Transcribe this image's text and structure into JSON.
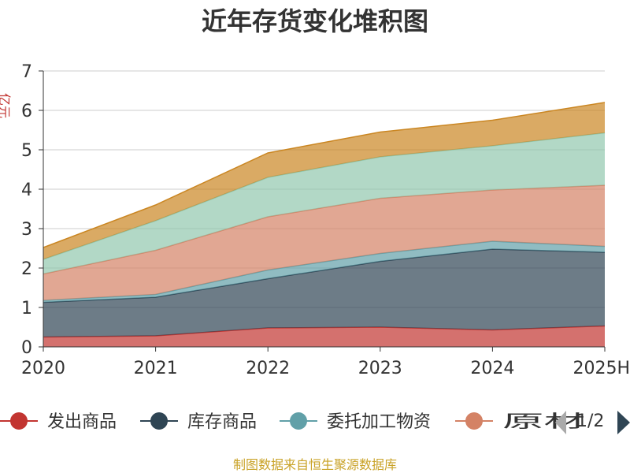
{
  "chart_data": {
    "type": "area",
    "stacked": true,
    "title": "近年存货变化堆积图",
    "ylabel": "亿元",
    "categories": [
      "2020",
      "2021",
      "2022",
      "2023",
      "2024",
      "2025H"
    ],
    "ylim": [
      0,
      7
    ],
    "yticks": [
      0,
      1,
      2,
      3,
      4,
      5,
      6,
      7
    ],
    "grid": true,
    "series": [
      {
        "name": "发出商品",
        "color": "#c23531",
        "values": [
          0.25,
          0.28,
          0.48,
          0.5,
          0.43,
          0.53
        ]
      },
      {
        "name": "库存商品",
        "color": "#2f4554",
        "values": [
          0.88,
          0.98,
          1.25,
          1.67,
          2.05,
          1.87
        ]
      },
      {
        "name": "委托加工物资",
        "color": "#61a0a8",
        "values": [
          0.05,
          0.07,
          0.22,
          0.2,
          0.2,
          0.15
        ]
      },
      {
        "name": "原材料",
        "color": "#d48265",
        "values": [
          0.67,
          1.12,
          1.35,
          1.4,
          1.3,
          1.55
        ]
      },
      {
        "name": "",
        "color": "#91c7ae",
        "values": [
          0.37,
          0.75,
          1.0,
          1.05,
          1.12,
          1.33
        ]
      },
      {
        "name": "",
        "color": "#ca8622",
        "values": [
          0.3,
          0.4,
          0.62,
          0.63,
          0.65,
          0.77
        ]
      }
    ],
    "legend": {
      "position": "bottom",
      "visible_labels": [
        "发出商品",
        "库存商品",
        "委托加工物资",
        "原材"
      ],
      "page_indicator": "1/2"
    }
  },
  "source": "制图数据来自恒生聚源数据库"
}
